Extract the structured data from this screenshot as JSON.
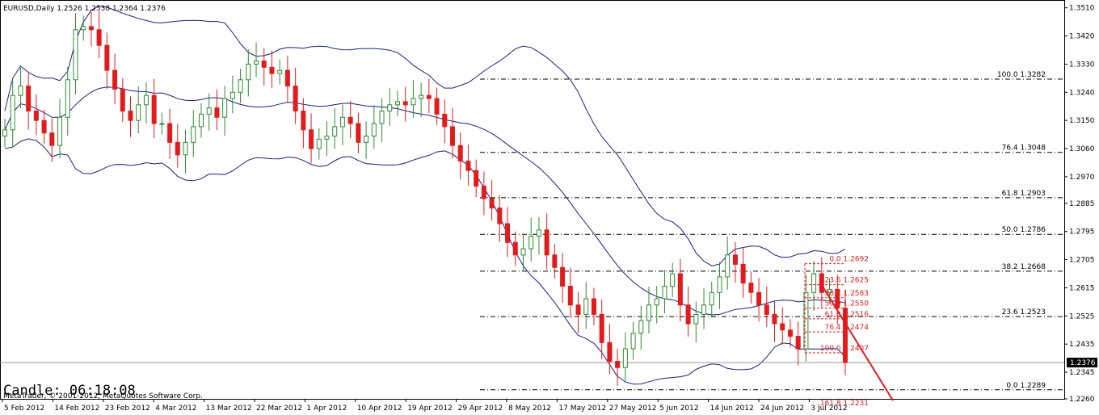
{
  "header": {
    "symbol_line": "EURUSD,Daily  1.2526 1.2538 1.2364 1.2376"
  },
  "footer": {
    "timer": "Candle:  06:18:08",
    "copyright": "MetaTrader, © 2001-2012, MetaQuotes Software Corp."
  },
  "colors": {
    "bull": "#2e8b2e",
    "bear": "#e31b1b",
    "band": "#1c1c8c",
    "fib1": "#000000",
    "fib2": "#e31b1b",
    "current_price_bg": "#000000"
  },
  "chart_data": {
    "type": "candlestick",
    "symbol": "EURUSD",
    "timeframe": "Daily",
    "ylim": [
      1.226,
      1.3535
    ],
    "y_ticks": [
      "1.3510",
      "1.3420",
      "1.3330",
      "1.3240",
      "1.3150",
      "1.3060",
      "1.2970",
      "1.2885",
      "1.2795",
      "1.2705",
      "1.2615",
      "1.2525",
      "1.2435",
      "1.2345",
      "1.2260"
    ],
    "x_ticks": [
      "5 Feb 2012",
      "14 Feb 2012",
      "23 Feb 2012",
      "4 Mar 2012",
      "13 Mar 2012",
      "22 Mar 2012",
      "1 Apr 2012",
      "10 Apr 2012",
      "19 Apr 2012",
      "29 Apr 2012",
      "8 May 2012",
      "17 May 2012",
      "27 May 2012",
      "5 Jun 2012",
      "14 Jun 2012",
      "24 Jun 2012",
      "3 Jul 2012"
    ],
    "current_price": "1.2376",
    "close_series": [
      1.312,
      1.323,
      1.326,
      1.318,
      1.315,
      1.311,
      1.307,
      1.316,
      1.328,
      1.344,
      1.345,
      1.344,
      1.339,
      1.331,
      1.325,
      1.318,
      1.315,
      1.32,
      1.323,
      1.314,
      1.314,
      1.308,
      1.304,
      1.308,
      1.313,
      1.317,
      1.319,
      1.316,
      1.322,
      1.324,
      1.328,
      1.333,
      1.334,
      1.332,
      1.33,
      1.331,
      1.326,
      1.318,
      1.312,
      1.306,
      1.309,
      1.31,
      1.313,
      1.316,
      1.314,
      1.308,
      1.31,
      1.314,
      1.318,
      1.32,
      1.321,
      1.32,
      1.322,
      1.323,
      1.322,
      1.317,
      1.313,
      1.307,
      1.302,
      1.299,
      1.294,
      1.29,
      1.287,
      1.282,
      1.276,
      1.272,
      1.274,
      1.278,
      1.28,
      1.272,
      1.268,
      1.262,
      1.256,
      1.253,
      1.258,
      1.253,
      1.244,
      1.238,
      1.236,
      1.242,
      1.247,
      1.251,
      1.256,
      1.258,
      1.262,
      1.266,
      1.256,
      1.25,
      1.253,
      1.256,
      1.26,
      1.265,
      1.272,
      1.269,
      1.263,
      1.26,
      1.256,
      1.253,
      1.25,
      1.248,
      1.246,
      1.242,
      1.26,
      1.266,
      1.26,
      1.261,
      1.255,
      1.2376
    ],
    "fibonacci_primary": [
      {
        "label": "100.0 1.3282",
        "price": 1.3282
      },
      {
        "label": "76.4 1.3048",
        "price": 1.3048
      },
      {
        "label": "61.8 1.2903",
        "price": 1.2903
      },
      {
        "label": "50.0 1.2786",
        "price": 1.2786
      },
      {
        "label": "38.2  1.2668",
        "price": 1.2668
      },
      {
        "label": "23.6 1.2523",
        "price": 1.2523
      },
      {
        "label": "0.0 1.2289",
        "price": 1.2289
      }
    ],
    "fibonacci_secondary": [
      {
        "label": "0.0 1.2692",
        "price": 1.2692
      },
      {
        "label": "23.6 1.2625",
        "price": 1.2625
      },
      {
        "label": "38.2 1.2583",
        "price": 1.2583
      },
      {
        "label": "50.0 1.2550",
        "price": 1.255
      },
      {
        "label": "61.8 1.2516",
        "price": 1.2516
      },
      {
        "label": "76.4 1.2474",
        "price": 1.2474
      },
      {
        "label": "100.0 1.2407",
        "price": 1.2407
      },
      {
        "label": "161.8 1.2231",
        "price": 1.2231
      }
    ]
  }
}
